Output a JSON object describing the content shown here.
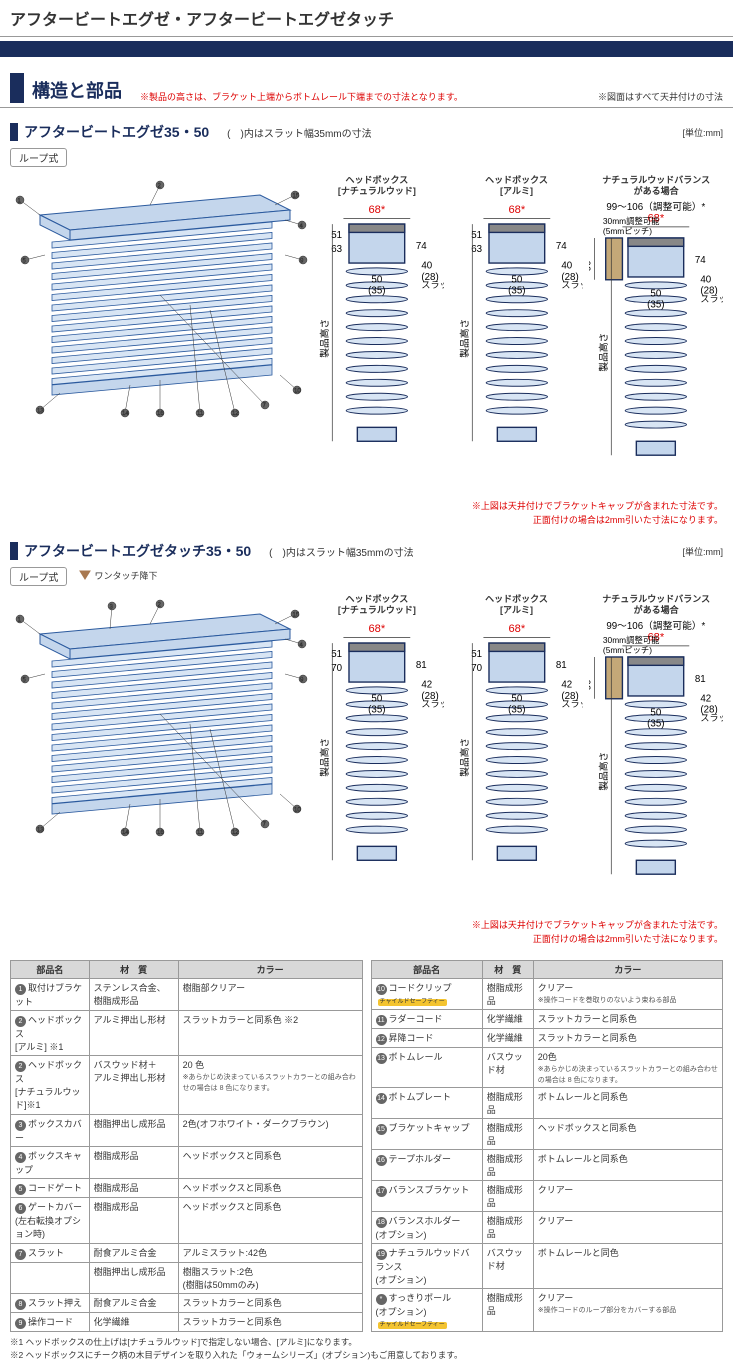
{
  "page_title": "アフタービートエグゼ・アフタービートエグゼタッチ",
  "section": {
    "title": "構造と部品",
    "note_red": "※製品の高さは、ブラケット上端からボトムレール下端までの寸法となります。",
    "note_right": "※図面はすべて天井付けの寸法"
  },
  "product1": {
    "title": "アフタービートエグゼ35・50",
    "sub": "(　)内はスラット幅35mmの寸法",
    "unit": "[単位:mm]",
    "loop": "ループ式",
    "diagrams": [
      {
        "hdr1": "ヘッドボックス",
        "hdr2": "[ナチュラルウッド]",
        "top": "68*",
        "h1": "63",
        "h2": "51",
        "h3": "74",
        "slat_w": "50",
        "slat_w2": "(35)",
        "slat_l": "スラット幅",
        "ext": "40",
        "ext2": "(28)"
      },
      {
        "hdr1": "ヘッドボックス",
        "hdr2": "[アルミ]",
        "top": "68*",
        "h1": "63",
        "h2": "51",
        "h3": "74",
        "slat_w": "50",
        "slat_w2": "(35)",
        "slat_l": "スラット幅",
        "ext": "40",
        "ext2": "(28)"
      },
      {
        "hdr1": "ナチュラルウッドバランス",
        "hdr2": "がある場合",
        "range": "99～106（調整可能）*",
        "adj": "30mm調整可能",
        "adj2": "(5mmピッチ)",
        "top": "68*",
        "h1": "90",
        "h3": "74",
        "slat_w": "50",
        "slat_w2": "(35)",
        "slat_l": "スラット幅",
        "ext": "40",
        "ext2": "(28)"
      }
    ],
    "red_note1": "※上図は天井付けでブラケットキャップが含まれた寸法です。",
    "red_note2": "正面付けの場合は2mm引いた寸法になります。"
  },
  "product2": {
    "title": "アフタービートエグゼタッチ35・50",
    "sub": "(　)内はスラット幅35mmの寸法",
    "unit": "[単位:mm]",
    "loop": "ループ式",
    "onetouch": "ワンタッチ降下",
    "diagrams": [
      {
        "hdr1": "ヘッドボックス",
        "hdr2": "[ナチュラルウッド]",
        "top": "68*",
        "h1": "70",
        "h2": "51",
        "h3": "81",
        "slat_w": "50",
        "slat_w2": "(35)",
        "slat_l": "スラット幅",
        "ext": "42",
        "ext2": "(28)"
      },
      {
        "hdr1": "ヘッドボックス",
        "hdr2": "[アルミ]",
        "top": "68*",
        "h1": "70",
        "h2": "51",
        "h3": "81",
        "slat_w": "50",
        "slat_w2": "(35)",
        "slat_l": "スラット幅",
        "ext": "42",
        "ext2": "(28)"
      },
      {
        "hdr1": "ナチュラルウッドバランス",
        "hdr2": "がある場合",
        "range": "99～106（調整可能）*",
        "adj": "30mm調整可能",
        "adj2": "(5mmピッチ)",
        "top": "68*",
        "h1": "90",
        "h3": "81",
        "slat_w": "50",
        "slat_w2": "(35)",
        "slat_l": "スラット幅",
        "ext": "42",
        "ext2": "(28)"
      }
    ],
    "red_note1": "※上図は天井付けでブラケットキャップが含まれた寸法です。",
    "red_note2": "正面付けの場合は2mm引いた寸法になります。"
  },
  "tables": {
    "headers": [
      "部品名",
      "材　質",
      "カラー"
    ],
    "left": [
      {
        "n": "1",
        "name": "取付けブラケット",
        "mat": "ステンレス合金、樹脂成形品",
        "col": "樹脂部クリアー"
      },
      {
        "n": "2",
        "name": "ヘッドボックス\n[アルミ] ※1",
        "mat": "アルミ押出し形材",
        "col": "スラットカラーと同系色 ※2"
      },
      {
        "n": "2",
        "name": "ヘッドボックス\n[ナチュラルウッド]※1",
        "mat": "バスウッド材＋\nアルミ押出し形材",
        "col": "20 色\n※あらかじめ決まっているスラットカラーとの組み合わせの場合は 8 色になります。"
      },
      {
        "n": "3",
        "name": "ボックスカバー",
        "mat": "樹脂押出し成形品",
        "col": "2色(オフホワイト・ダークブラウン)"
      },
      {
        "n": "4",
        "name": "ボックスキャップ",
        "mat": "樹脂成形品",
        "col": "ヘッドボックスと同系色"
      },
      {
        "n": "5",
        "name": "コードゲート",
        "mat": "樹脂成形品",
        "col": "ヘッドボックスと同系色"
      },
      {
        "n": "6",
        "name": "ゲートカバー\n(左右転換オプション時)",
        "mat": "樹脂成形品",
        "col": "ヘッドボックスと同系色"
      },
      {
        "n": "7",
        "name": "スラット",
        "mat": "耐食アルミ合金",
        "col": "アルミスラット:42色",
        "mat2": "樹脂押出し成形品",
        "col2": "樹脂スラット:2色\n(樹脂は50mmのみ)"
      },
      {
        "n": "8",
        "name": "スラット押え",
        "mat": "耐食アルミ合金",
        "col": "スラットカラーと同系色"
      },
      {
        "n": "9",
        "name": "操作コード",
        "mat": "化学繊維",
        "col": "スラットカラーと同系色"
      }
    ],
    "right": [
      {
        "n": "10",
        "name": "コードクリップ",
        "badge": "チャイルドセーフティー",
        "mat": "樹脂成形品",
        "col": "クリアー\n※操作コードを巻取りのないよう束ねる部品"
      },
      {
        "n": "11",
        "name": "ラダーコード",
        "mat": "化学繊維",
        "col": "スラットカラーと同系色"
      },
      {
        "n": "12",
        "name": "昇降コード",
        "mat": "化学繊維",
        "col": "スラットカラーと同系色"
      },
      {
        "n": "13",
        "name": "ボトムレール",
        "mat": "バスウッド材",
        "col": "20色\n※あらかじめ決まっているスラットカラーとの組み合わせの場合は 8 色になります。"
      },
      {
        "n": "14",
        "name": "ボトムプレート",
        "mat": "樹脂成形品",
        "col": "ボトムレールと同系色"
      },
      {
        "n": "15",
        "name": "ブラケットキャップ",
        "mat": "樹脂成形品",
        "col": "ヘッドボックスと同系色"
      },
      {
        "n": "16",
        "name": "テープホルダー",
        "mat": "樹脂成形品",
        "col": "ボトムレールと同系色"
      },
      {
        "n": "17",
        "name": "バランスブラケット",
        "mat": "樹脂成形品",
        "col": "クリアー"
      },
      {
        "n": "18",
        "name": "バランスホルダー\n(オプション)",
        "mat": "樹脂成形品",
        "col": "クリアー"
      },
      {
        "n": "19",
        "name": "ナチュラルウッドバランス\n(オプション)",
        "mat": "バスウッド材",
        "col": "ボトムレールと同色"
      },
      {
        "n": "*",
        "name": "すっきりポール\n(オプション)",
        "badge": "チャイルドセーフティー",
        "mat": "樹脂成形品",
        "col": "クリアー\n※操作コードのループ部分をカバーする部品"
      }
    ]
  },
  "footnotes": [
    "※1 ヘッドボックスの仕上げは[ナチュラルウッド]で指定しない場合、[アルミ]になります。",
    "※2 ヘッドボックスにチーク柄の木目デザインを取り入れた「ウォームシリーズ」(オプション)もご用意しております。"
  ],
  "vlabel": "製品高さ"
}
